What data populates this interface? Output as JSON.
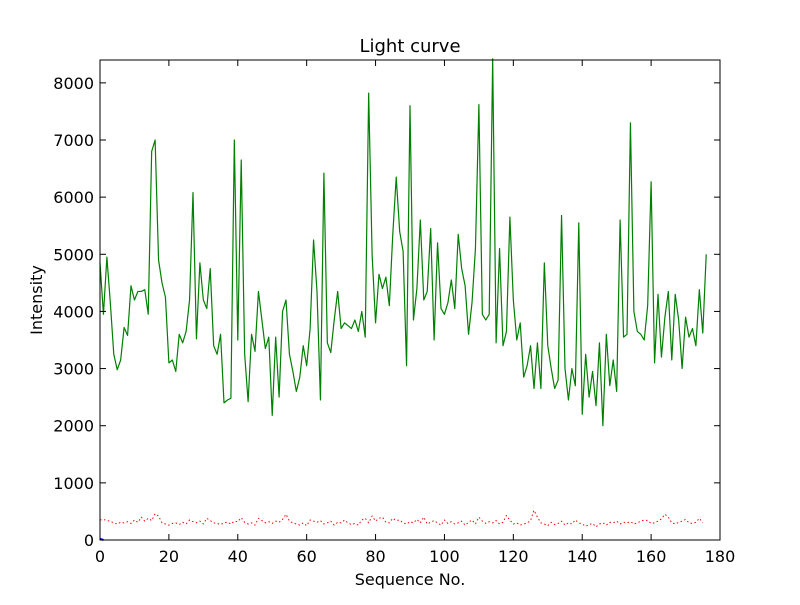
{
  "chart_data": {
    "type": "line",
    "title": "Light curve",
    "xlabel": "Sequence No.",
    "ylabel": "Intensity",
    "xlim": [
      0,
      180
    ],
    "ylim": [
      0,
      8400
    ],
    "xticks": [
      0,
      20,
      40,
      60,
      80,
      100,
      120,
      140,
      160,
      180
    ],
    "yticks": [
      0,
      1000,
      2000,
      3000,
      4000,
      5000,
      6000,
      7000,
      8000
    ],
    "grid": false,
    "series": [
      {
        "style": "solid",
        "color": "#008000",
        "values": [
          4850,
          3950,
          4950,
          4150,
          3250,
          2980,
          3150,
          3720,
          3580,
          4450,
          4200,
          4350,
          4350,
          4380,
          3950,
          6800,
          7000,
          4900,
          4500,
          4250,
          3100,
          3150,
          2950,
          3600,
          3450,
          3650,
          4200,
          6080,
          3520,
          4850,
          4200,
          4050,
          4750,
          3400,
          3250,
          3600,
          2400,
          2450,
          2480,
          7000,
          3500,
          6650,
          3250,
          2420,
          3600,
          3300,
          4350,
          3850,
          3350,
          3550,
          2180,
          3550,
          2500,
          4000,
          4200,
          3250,
          2950,
          2600,
          2850,
          3400,
          3050,
          3700,
          5250,
          4350,
          2450,
          6420,
          3450,
          3280,
          3850,
          4350,
          3700,
          3800,
          3750,
          3700,
          3850,
          3650,
          4000,
          3550,
          7820,
          5000,
          3800,
          4650,
          4400,
          4600,
          4100,
          5350,
          6350,
          5400,
          5050,
          3050,
          7600,
          3850,
          4400,
          5600,
          4200,
          4350,
          5450,
          3500,
          5200,
          4050,
          3950,
          4150,
          4550,
          4050,
          5350,
          4750,
          4450,
          3600,
          4150,
          5100,
          7620,
          3950,
          3850,
          3950,
          8420,
          3450,
          5100,
          3400,
          3650,
          5650,
          4200,
          3500,
          3800,
          2850,
          3050,
          3400,
          2650,
          3450,
          2650,
          4850,
          3400,
          3000,
          2650,
          2800,
          5680,
          3000,
          2450,
          3000,
          2700,
          5550,
          2200,
          3250,
          2500,
          2950,
          2350,
          3450,
          2000,
          3600,
          2700,
          3150,
          2600,
          5600,
          3550,
          3600,
          7300,
          4000,
          3650,
          3600,
          3500,
          4100,
          6270,
          3100,
          4300,
          3200,
          3900,
          4350,
          3150,
          4300,
          3850,
          3000,
          3900,
          3550,
          3700,
          3400,
          4380,
          3620,
          5000
        ]
      },
      {
        "style": "dotted",
        "color": "#ff0000",
        "values": [
          350,
          360,
          340,
          330,
          300,
          280,
          310,
          300,
          320,
          290,
          350,
          310,
          400,
          330,
          380,
          340,
          460,
          420,
          300,
          280,
          260,
          290,
          300,
          270,
          310,
          280,
          350,
          320,
          300,
          330,
          280,
          380,
          340,
          300,
          290,
          270,
          300,
          310,
          280,
          330,
          320,
          390,
          310,
          280,
          300,
          260,
          380,
          340,
          300,
          320,
          290,
          330,
          310,
          360,
          450,
          330,
          300,
          280,
          260,
          300,
          250,
          350,
          330,
          310,
          340,
          280,
          300,
          330,
          260,
          310,
          300,
          350,
          300,
          270,
          290,
          260,
          350,
          380,
          300,
          420,
          330,
          380,
          400,
          310,
          300,
          380,
          340,
          350,
          300,
          280,
          320,
          300,
          360,
          300,
          400,
          280,
          310,
          340,
          300,
          260,
          350,
          290,
          320,
          280,
          300,
          330,
          260,
          310,
          350,
          280,
          400,
          330,
          290,
          320,
          300,
          340,
          280,
          310,
          430,
          350,
          280,
          300,
          260,
          280,
          300,
          340,
          520,
          400,
          300,
          280,
          250,
          310,
          270,
          290,
          330,
          260,
          300,
          280,
          350,
          300,
          280,
          240,
          270,
          290,
          230,
          280,
          300,
          260,
          310,
          300,
          330,
          280,
          310,
          300,
          320,
          280,
          300,
          330,
          350,
          340,
          290,
          300,
          330,
          370,
          450,
          400,
          300,
          280,
          310,
          330,
          360,
          300,
          290,
          310,
          380,
          300
        ]
      },
      {
        "style": "solid",
        "color": "#0000ff",
        "values": [
          20,
          0
        ]
      }
    ]
  }
}
